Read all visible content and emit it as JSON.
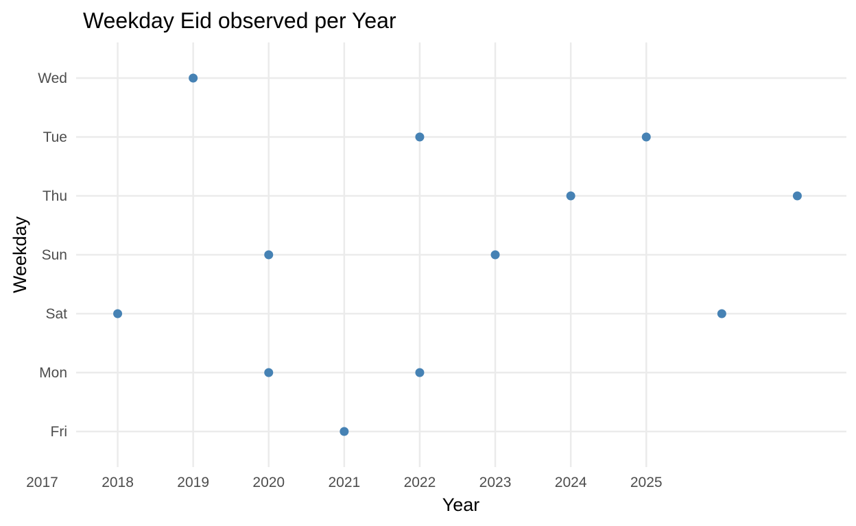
{
  "chart_data": {
    "type": "scatter",
    "title": "Weekday Eid observed per Year",
    "xlabel": "Year",
    "ylabel": "Weekday",
    "x_ticks": [
      2017,
      2018,
      2019,
      2020,
      2021,
      2022,
      2023,
      2024,
      2025
    ],
    "xlim": [
      2017.45,
      2027.65
    ],
    "y_categories": [
      "Fri",
      "Mon",
      "Sat",
      "Sun",
      "Thu",
      "Tue",
      "Wed"
    ],
    "grid": true,
    "legend": "none",
    "point_color": "#4682B4",
    "points": [
      {
        "x": 2018,
        "y": "Sat"
      },
      {
        "x": 2019,
        "y": "Wed"
      },
      {
        "x": 2020,
        "y": "Sun"
      },
      {
        "x": 2020,
        "y": "Mon"
      },
      {
        "x": 2021,
        "y": "Fri"
      },
      {
        "x": 2022,
        "y": "Tue"
      },
      {
        "x": 2022,
        "y": "Mon"
      },
      {
        "x": 2023,
        "y": "Sun"
      },
      {
        "x": 2024,
        "y": "Thu"
      },
      {
        "x": 2025,
        "y": "Tue"
      },
      {
        "x": 2026,
        "y": "Sat"
      },
      {
        "x": 2027,
        "y": "Thu"
      }
    ]
  }
}
